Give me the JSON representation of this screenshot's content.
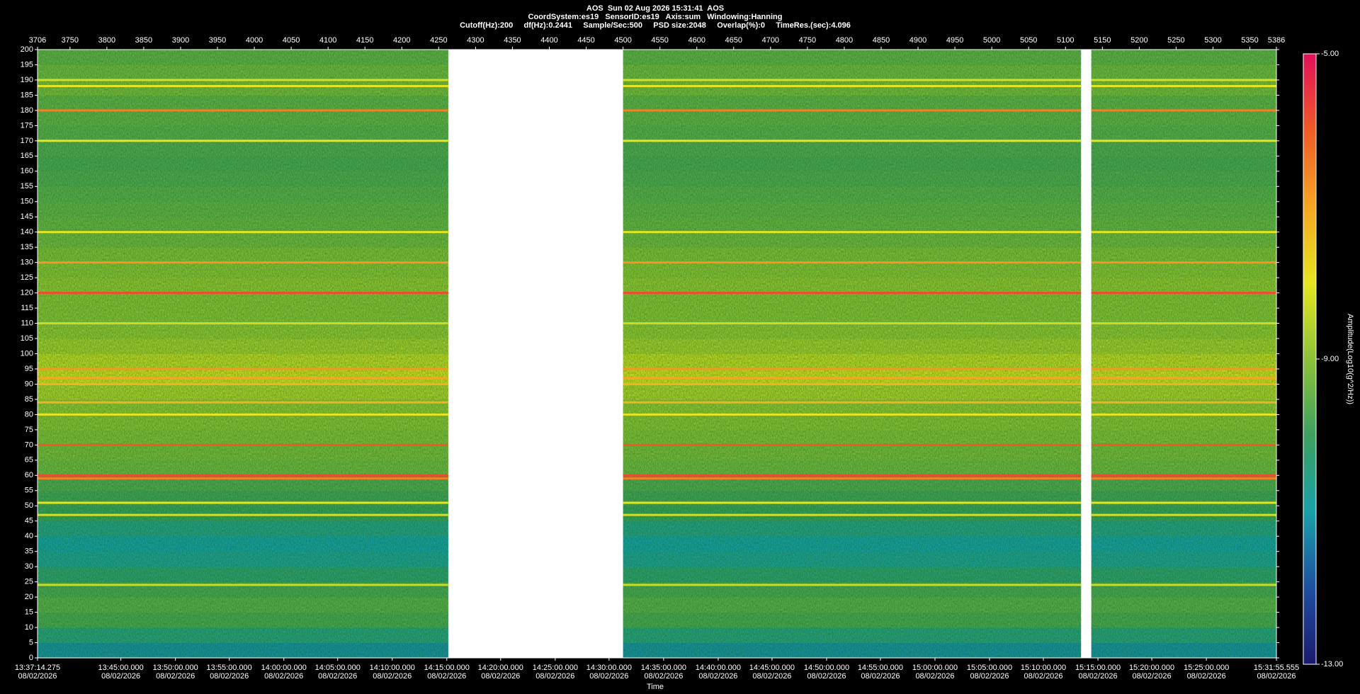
{
  "chart_data": {
    "type": "spectrogram",
    "title": "AOS  Sun 02 Aug 2026 15:31:41  AOS",
    "subtitle": [
      "CoordSystem:es19   SensorID:es19   Axis:sum   Windowing:Hanning",
      "Cutoff(Hz):200     df(Hz):0.2441     Sample/Sec:500     PSD size:2048     Overlap(%):0     TimeRes.(sec):4.096"
    ],
    "xlabel": "Time",
    "colorbar_label": "Amplitude(Log10(g^2/Hz))",
    "xlim": [
      3706,
      5386
    ],
    "top_xticks": [
      3706,
      3750,
      3800,
      3850,
      3900,
      3950,
      4000,
      4050,
      4100,
      4150,
      4200,
      4250,
      4300,
      4350,
      4400,
      4450,
      4500,
      4550,
      4600,
      4650,
      4700,
      4750,
      4800,
      4850,
      4900,
      4950,
      5000,
      5050,
      5100,
      5150,
      5200,
      5250,
      5300,
      5350,
      5386
    ],
    "xticks": [
      {
        "value": 3706,
        "label": "13:37:14.275"
      },
      {
        "value": 3819,
        "label": "13:45:00.000"
      },
      {
        "value": 3893,
        "label": "13:50:00.000"
      },
      {
        "value": 3966,
        "label": "13:55:00.000"
      },
      {
        "value": 4040,
        "label": "14:00:00.000"
      },
      {
        "value": 4113,
        "label": "14:05:00.000"
      },
      {
        "value": 4187,
        "label": "14:10:00.000"
      },
      {
        "value": 4261,
        "label": "14:15:00.000"
      },
      {
        "value": 4334,
        "label": "14:20:00.000"
      },
      {
        "value": 4408,
        "label": "14:25:00.000"
      },
      {
        "value": 4481,
        "label": "14:30:00.000"
      },
      {
        "value": 4555,
        "label": "14:35:00.000"
      },
      {
        "value": 4629,
        "label": "14:40:00.000"
      },
      {
        "value": 4702,
        "label": "14:45:00.000"
      },
      {
        "value": 4776,
        "label": "14:50:00.000"
      },
      {
        "value": 4849,
        "label": "14:55:00.000"
      },
      {
        "value": 4923,
        "label": "15:00:00.000"
      },
      {
        "value": 4997,
        "label": "15:05:00.000"
      },
      {
        "value": 5070,
        "label": "15:10:00.000"
      },
      {
        "value": 5144,
        "label": "15:15:00.000"
      },
      {
        "value": 5217,
        "label": "15:20:00.000"
      },
      {
        "value": 5291,
        "label": "15:25:00.000"
      },
      {
        "value": 5386,
        "label": "15:31:55.555"
      }
    ],
    "xtick_dates": [
      "08/02/2026",
      "08/02/2026",
      "08/02/2026",
      "08/02/2026",
      "08/02/2026",
      "08/02/2026",
      "08/02/2026",
      "08/02/2026",
      "08/02/2026",
      "08/02/2026",
      "08/02/2026",
      "08/02/2026",
      "08/02/2026",
      "08/02/2026",
      "08/02/2026",
      "08/02/2026",
      "08/02/2026",
      "08/02/2026",
      "08/02/2026",
      "08/02/2026",
      "08/02/2026",
      "08/02/2026",
      "08/02/2026"
    ],
    "ylim": [
      0,
      200
    ],
    "yticks": [
      0,
      5,
      10,
      15,
      20,
      25,
      30,
      35,
      40,
      45,
      50,
      55,
      60,
      65,
      70,
      75,
      80,
      85,
      90,
      95,
      100,
      105,
      110,
      115,
      120,
      125,
      130,
      135,
      140,
      145,
      150,
      155,
      160,
      165,
      170,
      175,
      180,
      185,
      190,
      195,
      200
    ],
    "y_edges": [
      0,
      5,
      10,
      15,
      20,
      25,
      30,
      35,
      40,
      45,
      50,
      55,
      60,
      65,
      70,
      75,
      80,
      85,
      90,
      95,
      100,
      105,
      110,
      115,
      120,
      125,
      130,
      135,
      140,
      145,
      150,
      155,
      160,
      165,
      170,
      175,
      180,
      185,
      190,
      195,
      200
    ],
    "values": [
      -11.2,
      -10.5,
      -9.8,
      -9.6,
      -9.8,
      -10.3,
      -10.8,
      -11.0,
      -10.6,
      -10.0,
      -9.9,
      -9.7,
      -9.3,
      -9.2,
      -9.1,
      -9.0,
      -8.9,
      -8.6,
      -8.2,
      -8.4,
      -8.7,
      -8.9,
      -9.0,
      -9.0,
      -8.9,
      -9.0,
      -9.1,
      -9.3,
      -9.4,
      -9.5,
      -9.6,
      -9.7,
      -9.8,
      -9.7,
      -9.6,
      -9.5,
      -9.5,
      -9.2,
      -9.3,
      -9.5
    ],
    "lines": [
      {
        "freq": 190,
        "amplitude": -8.2
      },
      {
        "freq": 188,
        "amplitude": -8.0
      },
      {
        "freq": 180,
        "amplitude": -6.5
      },
      {
        "freq": 170,
        "amplitude": -8.0
      },
      {
        "freq": 140,
        "amplitude": -8.0
      },
      {
        "freq": 130,
        "amplitude": -6.8
      },
      {
        "freq": 120,
        "amplitude": -5.8
      },
      {
        "freq": 110,
        "amplitude": -8.3
      },
      {
        "freq": 95,
        "amplitude": -6.8
      },
      {
        "freq": 92,
        "amplitude": -7.0
      },
      {
        "freq": 90,
        "amplitude": -7.2
      },
      {
        "freq": 84,
        "amplitude": -7.2
      },
      {
        "freq": 80,
        "amplitude": -8.0
      },
      {
        "freq": 70,
        "amplitude": -6.0
      },
      {
        "freq": 60,
        "amplitude": -5.8
      },
      {
        "freq": 59,
        "amplitude": -6.5
      },
      {
        "freq": 51,
        "amplitude": -8.0
      },
      {
        "freq": 47,
        "amplitude": -8.2
      },
      {
        "freq": 24,
        "amplitude": -8.3
      }
    ],
    "data_segments": [
      [
        3706,
        4263
      ],
      [
        4500,
        5121
      ],
      [
        5135,
        5386
      ]
    ],
    "clim": [
      -13,
      -5
    ],
    "cticks": [
      {
        "value": -5,
        "label": "-5.00"
      },
      {
        "value": -9,
        "label": "-9.00"
      },
      {
        "value": -13,
        "label": "-13.00"
      }
    ],
    "colormap": [
      "#1a1a6e",
      "#1f4fa0",
      "#1aa0a8",
      "#3da060",
      "#8cc23a",
      "#e6e620",
      "#f5a623",
      "#f05a28",
      "#e0105a"
    ]
  }
}
